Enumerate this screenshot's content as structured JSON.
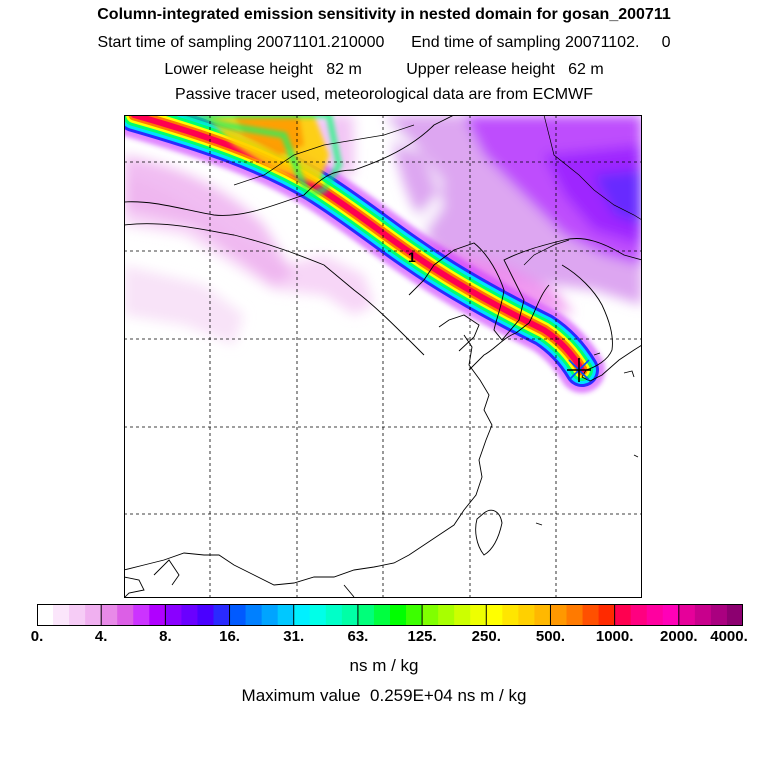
{
  "chart_data": {
    "type": "heatmap",
    "title": "Column-integrated emission sensitivity in nested domain for gosan_200711",
    "sampling_line": "Start time of sampling 20071101.210000      End time of sampling 20071102.     0",
    "release_line": "Lower release height   82 m          Upper release height   62 m",
    "tracer_line": "Passive tracer used, meteorological data are from ECMWF",
    "colorbar": {
      "unit_label": "ns m / kg",
      "tick_labels": [
        "0.",
        "4.",
        "8.",
        "16.",
        "31.",
        "63.",
        "125.",
        "250.",
        "500.",
        "1000.",
        "2000.",
        "4000."
      ],
      "tick_values": [
        0,
        4,
        8,
        16,
        31,
        63,
        125,
        250,
        500,
        1000,
        2000,
        4000
      ],
      "colors": [
        "#ffffff",
        "#fbe6fb",
        "#f6ccf6",
        "#f0b0f0",
        "#e88ae8",
        "#dc5fe6",
        "#cc33ff",
        "#b000ff",
        "#8a00ff",
        "#6a00ff",
        "#4a00ff",
        "#2a2aff",
        "#005aff",
        "#0080ff",
        "#00a4ff",
        "#00c8ff",
        "#00f0ff",
        "#00ffe8",
        "#00ffc8",
        "#00ffa6",
        "#00ff7a",
        "#00ff40",
        "#00ff00",
        "#3cff00",
        "#80ff00",
        "#a8ff00",
        "#ccff00",
        "#eeff00",
        "#ffff00",
        "#ffe600",
        "#ffd000",
        "#ffb800",
        "#ff9800",
        "#ff7a00",
        "#ff5000",
        "#ff2a00",
        "#ff0050",
        "#ff0080",
        "#ff00a0",
        "#ff00b8",
        "#e6009a",
        "#c8008c",
        "#aa0080",
        "#8c0070",
        "#700060",
        "#540050"
      ]
    },
    "plume_contour_label": "1",
    "max_value_line": "Maximum value  0.259E+04 ns m / kg",
    "max_value": 2590
  }
}
